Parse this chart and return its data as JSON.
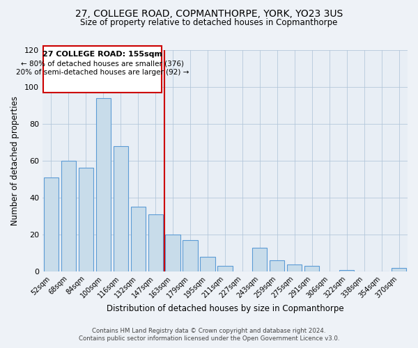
{
  "title1": "27, COLLEGE ROAD, COPMANTHORPE, YORK, YO23 3US",
  "title2": "Size of property relative to detached houses in Copmanthorpe",
  "xlabel": "Distribution of detached houses by size in Copmanthorpe",
  "ylabel": "Number of detached properties",
  "bar_color": "#c8dcea",
  "bar_edge_color": "#5b9bd5",
  "categories": [
    "52sqm",
    "68sqm",
    "84sqm",
    "100sqm",
    "116sqm",
    "132sqm",
    "147sqm",
    "163sqm",
    "179sqm",
    "195sqm",
    "211sqm",
    "227sqm",
    "243sqm",
    "259sqm",
    "275sqm",
    "291sqm",
    "306sqm",
    "322sqm",
    "338sqm",
    "354sqm",
    "370sqm"
  ],
  "values": [
    51,
    60,
    56,
    94,
    68,
    35,
    31,
    20,
    17,
    8,
    3,
    0,
    13,
    6,
    4,
    3,
    0,
    1,
    0,
    0,
    2
  ],
  "ylim": [
    0,
    120
  ],
  "yticks": [
    0,
    20,
    40,
    60,
    80,
    100,
    120
  ],
  "vline_color": "#cc0000",
  "annotation_title": "27 COLLEGE ROAD: 155sqm",
  "annotation_line1": "← 80% of detached houses are smaller (376)",
  "annotation_line2": "20% of semi-detached houses are larger (92) →",
  "footer1": "Contains HM Land Registry data © Crown copyright and database right 2024.",
  "footer2": "Contains public sector information licensed under the Open Government Licence v3.0.",
  "background_color": "#eef2f7",
  "plot_bg_color": "#eef2f7",
  "axes_bg_color": "#e8eef5"
}
